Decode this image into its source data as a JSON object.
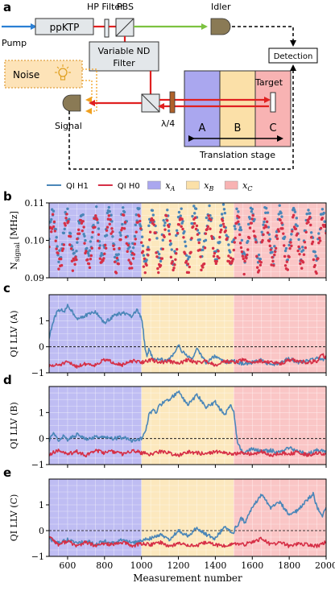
{
  "diagram": {
    "panel_label": "a",
    "pump": "Pump",
    "crystal": "ppKTP",
    "hp_filter": "HP Filter",
    "pbs": "PBS",
    "idler": "Idler",
    "nd_filter_line1": "Variable ND",
    "nd_filter_line2": "Filter",
    "noise": "Noise",
    "detection": "Detection",
    "signal": "Signal",
    "waveplate": "λ/4",
    "target": "Target",
    "zone_a": "A",
    "zone_b": "B",
    "zone_c": "C",
    "stage": "Translation stage",
    "colors": {
      "pump_beam": "#2a7fd4",
      "red_beam": "#e02020",
      "idler_beam": "#7cc240",
      "noise_box": "#fde3b8",
      "noise_border": "#e0a040",
      "zone_a": "#aaa7ef",
      "zone_b": "#fbe0a8",
      "zone_c": "#f8b3b3"
    }
  },
  "legend": {
    "entries": [
      {
        "label": "QI H1",
        "kind": "line",
        "color": "#4a86b8"
      },
      {
        "label": "QI H0",
        "kind": "line",
        "color": "#d62f46"
      },
      {
        "label": "x_A",
        "base": "x",
        "sub": "A",
        "kind": "patch",
        "color": "#aaa7ef"
      },
      {
        "label": "x_B",
        "base": "x",
        "sub": "B",
        "kind": "patch",
        "color": "#fbe0a8"
      },
      {
        "label": "x_C",
        "base": "x",
        "sub": "C",
        "kind": "patch",
        "color": "#f8b3b3"
      }
    ]
  },
  "chart_data": [
    {
      "panel": "b",
      "type": "scatter",
      "ylabel_base": "N",
      "ylabel_sub": "signal",
      "ylabel_unit": "[MHz]",
      "xlim": [
        500,
        2000
      ],
      "ylim": [
        0.09,
        0.11
      ],
      "yticks": [
        0.09,
        0.1,
        0.11
      ],
      "ytick_labels": [
        "0.09",
        "0.10",
        "0.11"
      ],
      "regions": [
        {
          "name": "x_A",
          "from": 500,
          "to": 1000,
          "color": "#aaa7ef"
        },
        {
          "name": "x_B",
          "from": 1000,
          "to": 1500,
          "color": "#fbe0a8"
        },
        {
          "name": "x_C",
          "from": 1500,
          "to": 2000,
          "color": "#f8b3b3"
        }
      ],
      "series": [
        {
          "name": "QI H1",
          "color": "#4a86b8",
          "mean": 0.1015,
          "amplitude": 0.006,
          "period": 77,
          "phase": 0.0,
          "x_range": [
            500,
            2000
          ],
          "x_step": 4,
          "noise": 0.0022
        },
        {
          "name": "QI H0",
          "color": "#d62f46",
          "mean": 0.0992,
          "amplitude": 0.0062,
          "period": 77,
          "phase": 0.0,
          "x_range": [
            500,
            2000
          ],
          "x_step": 4,
          "noise": 0.0022
        }
      ]
    },
    {
      "panel": "c",
      "type": "line",
      "ylabel": "QI LLV (A)",
      "xlim": [
        500,
        2000
      ],
      "ylim": [
        -1,
        2
      ],
      "yticks": [
        -1,
        0,
        1
      ],
      "ytick_labels": [
        "−1",
        "0",
        "1"
      ],
      "reference_line": 0,
      "regions": [
        {
          "name": "x_A",
          "from": 500,
          "to": 1000,
          "color": "#aaa7ef"
        },
        {
          "name": "x_B",
          "from": 1000,
          "to": 1500,
          "color": "#fbe0a8"
        },
        {
          "name": "x_C",
          "from": 1500,
          "to": 2000,
          "color": "#f8b3b3"
        }
      ],
      "series": [
        {
          "name": "QI H1",
          "color": "#4a86b8",
          "x": [
            500,
            520,
            540,
            560,
            580,
            600,
            650,
            700,
            750,
            800,
            850,
            900,
            950,
            975,
            990,
            1000,
            1010,
            1020,
            1030,
            1040,
            1060,
            1080,
            1100,
            1120,
            1150,
            1180,
            1200,
            1220,
            1250,
            1280,
            1300,
            1350,
            1400,
            1450,
            1500,
            1550,
            1600,
            1650,
            1700,
            1750,
            1800,
            1850,
            1900,
            1950,
            2000
          ],
          "y": [
            0.35,
            0.9,
            1.3,
            1.45,
            1.3,
            1.6,
            1.1,
            1.2,
            1.35,
            0.9,
            1.2,
            1.3,
            1.15,
            1.4,
            1.25,
            1.1,
            0.6,
            -0.1,
            -0.4,
            -0.1,
            -0.4,
            -0.5,
            -0.45,
            -0.55,
            -0.5,
            -0.2,
            0.1,
            -0.2,
            -0.35,
            -0.45,
            -0.1,
            -0.6,
            -0.35,
            -0.6,
            -0.55,
            -0.65,
            -0.6,
            -0.5,
            -0.7,
            -0.6,
            -0.45,
            -0.6,
            -0.55,
            -0.45,
            -0.5
          ]
        },
        {
          "name": "QI H0",
          "color": "#d62f46",
          "x": [
            500,
            550,
            600,
            650,
            700,
            750,
            800,
            850,
            900,
            950,
            1000,
            1050,
            1100,
            1150,
            1200,
            1250,
            1300,
            1350,
            1400,
            1450,
            1500,
            1550,
            1600,
            1650,
            1700,
            1750,
            1800,
            1850,
            1900,
            1950,
            1980,
            2000
          ],
          "y": [
            -0.75,
            -0.7,
            -0.6,
            -0.75,
            -0.65,
            -0.7,
            -0.5,
            -0.6,
            -0.7,
            -0.55,
            -0.6,
            -0.5,
            -0.6,
            -0.55,
            -0.65,
            -0.5,
            -0.6,
            -0.55,
            -0.7,
            -0.55,
            -0.6,
            -0.5,
            -0.6,
            -0.55,
            -0.6,
            -0.65,
            -0.5,
            -0.55,
            -0.6,
            -0.55,
            -0.3,
            -0.45
          ]
        }
      ]
    },
    {
      "panel": "d",
      "type": "line",
      "ylabel": "QI LLV (B)",
      "xlim": [
        500,
        2000
      ],
      "ylim": [
        -1,
        2
      ],
      "yticks": [
        -1,
        0,
        1
      ],
      "ytick_labels": [
        "−1",
        "0",
        "1"
      ],
      "reference_line": 0,
      "regions": [
        {
          "name": "x_A",
          "from": 500,
          "to": 1000,
          "color": "#aaa7ef"
        },
        {
          "name": "x_B",
          "from": 1000,
          "to": 1500,
          "color": "#fbe0a8"
        },
        {
          "name": "x_C",
          "from": 1500,
          "to": 2000,
          "color": "#f8b3b3"
        }
      ],
      "series": [
        {
          "name": "QI H1",
          "color": "#4a86b8",
          "x": [
            500,
            520,
            550,
            580,
            600,
            650,
            700,
            750,
            800,
            850,
            900,
            950,
            1000,
            1020,
            1040,
            1060,
            1080,
            1100,
            1150,
            1200,
            1250,
            1280,
            1300,
            1350,
            1400,
            1450,
            1480,
            1500,
            1510,
            1520,
            1550,
            1600,
            1650,
            1700,
            1750,
            1800,
            1850,
            1900,
            1950,
            2000
          ],
          "y": [
            -0.1,
            0.2,
            -0.05,
            0.1,
            -0.05,
            0.15,
            0.0,
            0.05,
            0.1,
            0.0,
            0.05,
            -0.1,
            0.0,
            0.2,
            0.9,
            1.1,
            1.0,
            1.3,
            1.5,
            1.8,
            1.3,
            1.5,
            1.7,
            1.2,
            1.4,
            0.9,
            1.3,
            1.0,
            0.4,
            -0.2,
            -0.55,
            -0.4,
            -0.5,
            -0.45,
            -0.55,
            -0.35,
            -0.5,
            -0.6,
            -0.45,
            -0.5
          ]
        },
        {
          "name": "QI H0",
          "color": "#d62f46",
          "x": [
            500,
            550,
            600,
            650,
            700,
            750,
            800,
            850,
            900,
            950,
            1000,
            1050,
            1100,
            1150,
            1200,
            1250,
            1300,
            1350,
            1400,
            1450,
            1500,
            1550,
            1600,
            1650,
            1700,
            1750,
            1800,
            1850,
            1900,
            1950,
            2000
          ],
          "y": [
            -0.6,
            -0.45,
            -0.6,
            -0.5,
            -0.65,
            -0.45,
            -0.55,
            -0.5,
            -0.6,
            -0.45,
            -0.55,
            -0.6,
            -0.5,
            -0.55,
            -0.65,
            -0.5,
            -0.55,
            -0.6,
            -0.5,
            -0.55,
            -0.6,
            -0.55,
            -0.6,
            -0.5,
            -0.65,
            -0.55,
            -0.6,
            -0.5,
            -0.65,
            -0.55,
            -0.6
          ]
        }
      ]
    },
    {
      "panel": "e",
      "type": "line",
      "ylabel": "QI LLV (C)",
      "xlabel": "Measurement number",
      "xlim": [
        500,
        2000
      ],
      "ylim": [
        -1,
        2
      ],
      "yticks": [
        -1,
        0,
        1
      ],
      "ytick_labels": [
        "−1",
        "0",
        "1"
      ],
      "xticks": [
        600,
        800,
        1000,
        1200,
        1400,
        1600,
        1800,
        2000
      ],
      "xtick_labels": [
        "600",
        "800",
        "1000",
        "1200",
        "1400",
        "1600",
        "1800",
        "2000"
      ],
      "reference_line": 0,
      "regions": [
        {
          "name": "x_A",
          "from": 500,
          "to": 1000,
          "color": "#aaa7ef"
        },
        {
          "name": "x_B",
          "from": 1000,
          "to": 1500,
          "color": "#fbe0a8"
        },
        {
          "name": "x_C",
          "from": 1500,
          "to": 2000,
          "color": "#f8b3b3"
        }
      ],
      "series": [
        {
          "name": "QI H1",
          "color": "#4a86b8",
          "x": [
            500,
            550,
            600,
            650,
            700,
            750,
            800,
            850,
            900,
            950,
            1000,
            1050,
            1100,
            1150,
            1200,
            1250,
            1300,
            1350,
            1400,
            1450,
            1500,
            1510,
            1520,
            1540,
            1560,
            1600,
            1650,
            1700,
            1750,
            1800,
            1850,
            1900,
            1930,
            1950,
            1980,
            2000
          ],
          "y": [
            -0.3,
            -0.5,
            -0.35,
            -0.5,
            -0.4,
            -0.55,
            -0.4,
            -0.5,
            -0.35,
            -0.5,
            -0.4,
            -0.3,
            -0.15,
            -0.35,
            0.0,
            -0.2,
            0.1,
            -0.15,
            -0.3,
            0.15,
            -0.1,
            0.2,
            0.1,
            0.5,
            0.3,
            0.9,
            1.4,
            0.9,
            1.1,
            0.6,
            0.8,
            1.2,
            1.45,
            0.9,
            0.6,
            0.9
          ]
        },
        {
          "name": "QI H0",
          "color": "#d62f46",
          "x": [
            500,
            550,
            600,
            650,
            700,
            750,
            800,
            850,
            900,
            950,
            1000,
            1050,
            1100,
            1150,
            1200,
            1250,
            1300,
            1350,
            1400,
            1450,
            1500,
            1550,
            1600,
            1650,
            1700,
            1750,
            1800,
            1850,
            1900,
            1950,
            2000
          ],
          "y": [
            -0.2,
            -0.55,
            -0.4,
            -0.6,
            -0.45,
            -0.6,
            -0.5,
            -0.55,
            -0.45,
            -0.6,
            -0.5,
            -0.55,
            -0.45,
            -0.6,
            -0.5,
            -0.55,
            -0.6,
            -0.45,
            -0.55,
            -0.6,
            -0.5,
            -0.55,
            -0.45,
            -0.3,
            -0.55,
            -0.45,
            -0.6,
            -0.5,
            -0.55,
            -0.6,
            -0.45
          ]
        }
      ]
    }
  ]
}
